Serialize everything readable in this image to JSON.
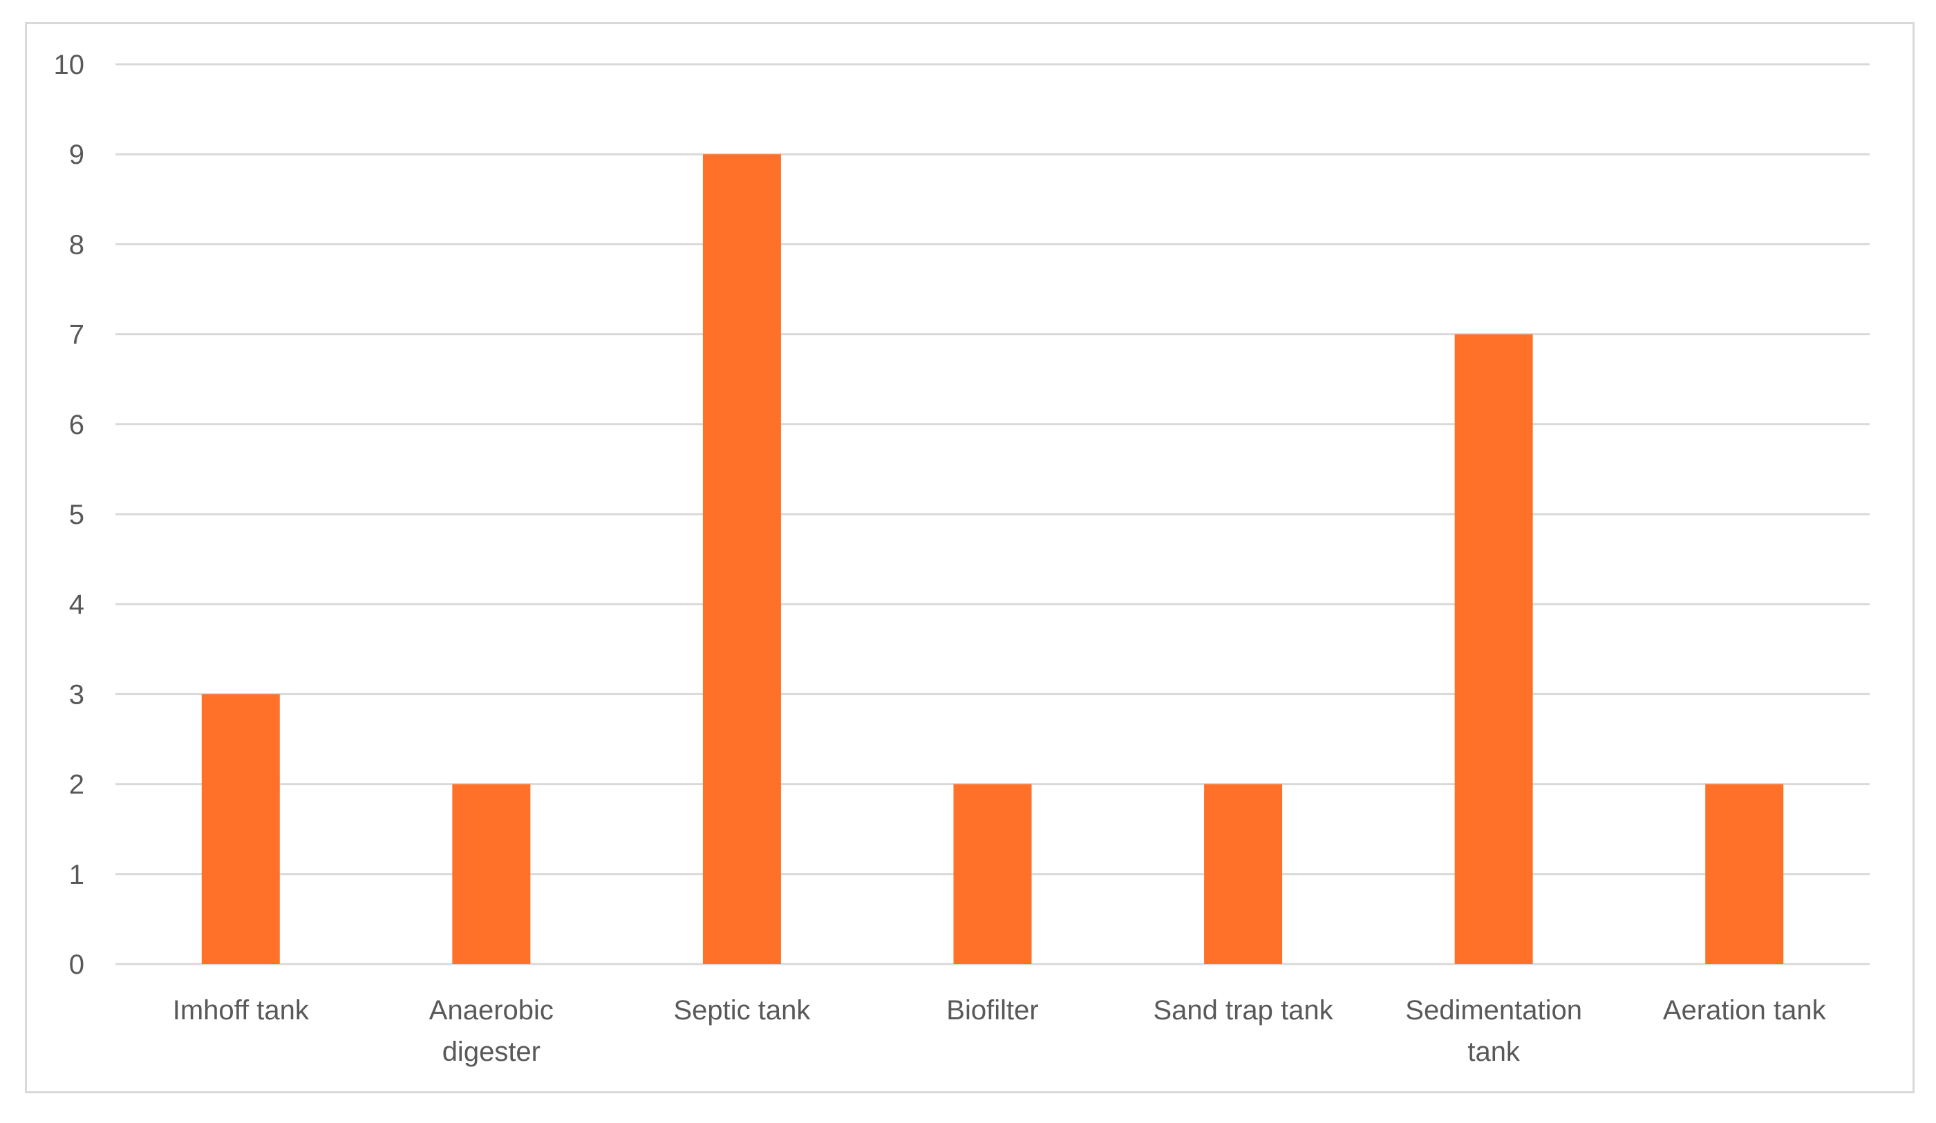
{
  "chart_data": {
    "type": "bar",
    "title": "",
    "xlabel": "",
    "ylabel": "",
    "categories": [
      [
        "Imhoff tank"
      ],
      [
        "Anaerobic",
        "digester"
      ],
      [
        "Septic tank"
      ],
      [
        "Biofilter"
      ],
      [
        "Sand trap tank"
      ],
      [
        "Sedimentation",
        "tank"
      ],
      [
        "Aeration tank"
      ]
    ],
    "values": [
      3,
      2,
      9,
      2,
      2,
      7,
      2
    ],
    "ylim": [
      0,
      10
    ],
    "yticks": [
      0,
      1,
      2,
      3,
      4,
      5,
      6,
      7,
      8,
      9,
      10
    ],
    "grid": true,
    "legend": "none",
    "bar_color": "#FF7128",
    "grid_color": "#D9D9D9",
    "text_color": "#595959"
  }
}
